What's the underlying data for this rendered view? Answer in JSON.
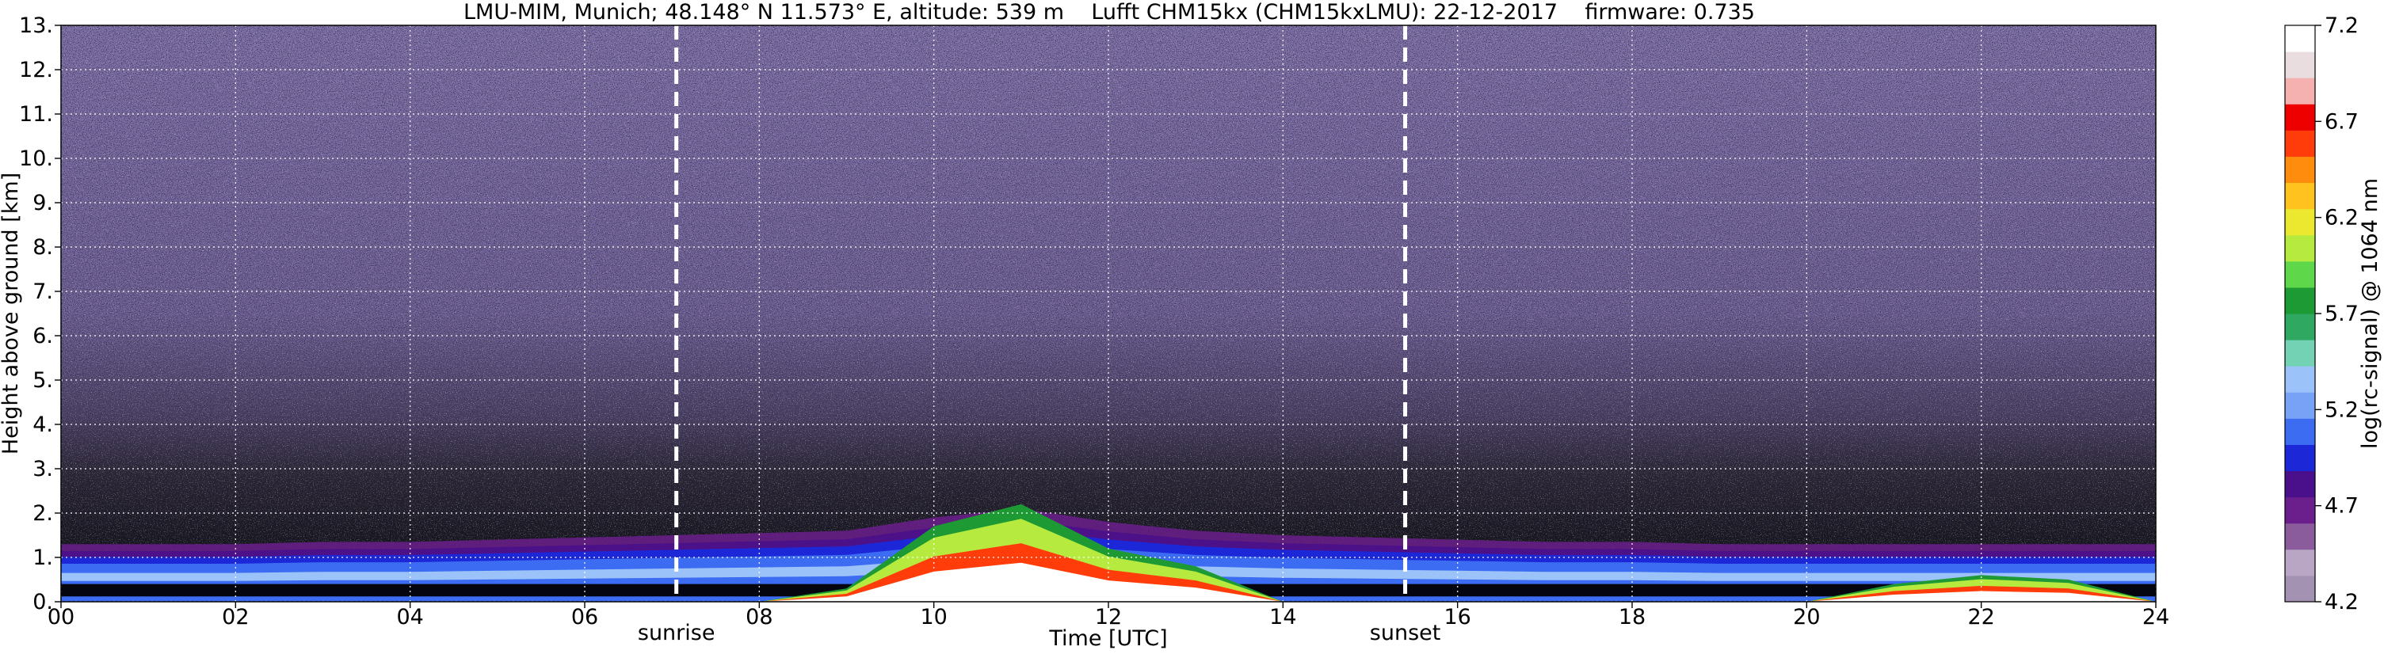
{
  "chart_data": {
    "type": "heatmap",
    "title": "LMU-MIM, Munich; 48.148° N 11.573° E, altitude: 539 m    Lufft CHM15kx (CHM15kxLMU): 22-12-2017    firmware: 0.735",
    "xlabel": "Time [UTC]",
    "ylabel": "Height above ground [km]",
    "xlim": [
      0,
      24
    ],
    "ylim": [
      0,
      13
    ],
    "x_ticks": [
      0,
      2,
      4,
      6,
      8,
      10,
      12,
      14,
      16,
      18,
      20,
      22,
      24
    ],
    "x_tick_labels": [
      "00",
      "02",
      "04",
      "06",
      "08",
      "10",
      "12",
      "14",
      "16",
      "18",
      "20",
      "22",
      "24"
    ],
    "y_ticks": [
      0,
      1,
      2,
      3,
      4,
      5,
      6,
      7,
      8,
      9,
      10,
      11,
      12,
      13
    ],
    "y_tick_labels": [
      "0.",
      "1.",
      "2.",
      "3.",
      "4.",
      "5.",
      "6.",
      "7.",
      "8.",
      "9.",
      "10.",
      "11.",
      "12.",
      "13."
    ],
    "grid": true,
    "markers": [
      {
        "label": "sunrise",
        "x": 7.05
      },
      {
        "label": "sunset",
        "x": 15.4
      }
    ],
    "colorbar": {
      "label": "log(rc-signal) @ 1064 nm",
      "range": [
        4.2,
        7.2
      ],
      "ticks": [
        4.2,
        4.7,
        5.2,
        5.7,
        6.2,
        6.7,
        7.2
      ],
      "tick_labels": [
        "4.2",
        "4.7",
        "5.2",
        "5.7",
        "6.2",
        "6.7",
        "7.2"
      ]
    },
    "layers": {
      "aerosol_layer_top_km": [
        1.3,
        1.3,
        1.3,
        1.35,
        1.35,
        1.4,
        1.45,
        1.5,
        1.55,
        1.6,
        1.9,
        2.1,
        1.8,
        1.6,
        1.5,
        1.45,
        1.4,
        1.35,
        1.35,
        1.3,
        1.3,
        1.3,
        1.3,
        1.3,
        1.3
      ],
      "cloud_layer_top_km": [
        0,
        0,
        0,
        0,
        0,
        0,
        0,
        0,
        0,
        0.3,
        1.7,
        2.2,
        1.2,
        0.8,
        0,
        0,
        0,
        0,
        0,
        0,
        0,
        0.4,
        0.6,
        0.5,
        0
      ]
    }
  },
  "colors": {
    "background": "#ffffff",
    "noise_dark": "#15141c",
    "noise_purple": "#7d6da5",
    "colormap": [
      "#a392b2",
      "#b9a6c4",
      "#8a5c9c",
      "#6b1f8c",
      "#4a0f8a",
      "#1c28d8",
      "#3c6cf2",
      "#78a2f6",
      "#9cc2fa",
      "#73d2b4",
      "#2fa862",
      "#1d9a34",
      "#5ed84a",
      "#b6ea3e",
      "#ece830",
      "#ffc21e",
      "#ff8c0c",
      "#ff3c0a",
      "#ee0000",
      "#f5b0b0",
      "#e9dddf",
      "#ffffff"
    ]
  }
}
